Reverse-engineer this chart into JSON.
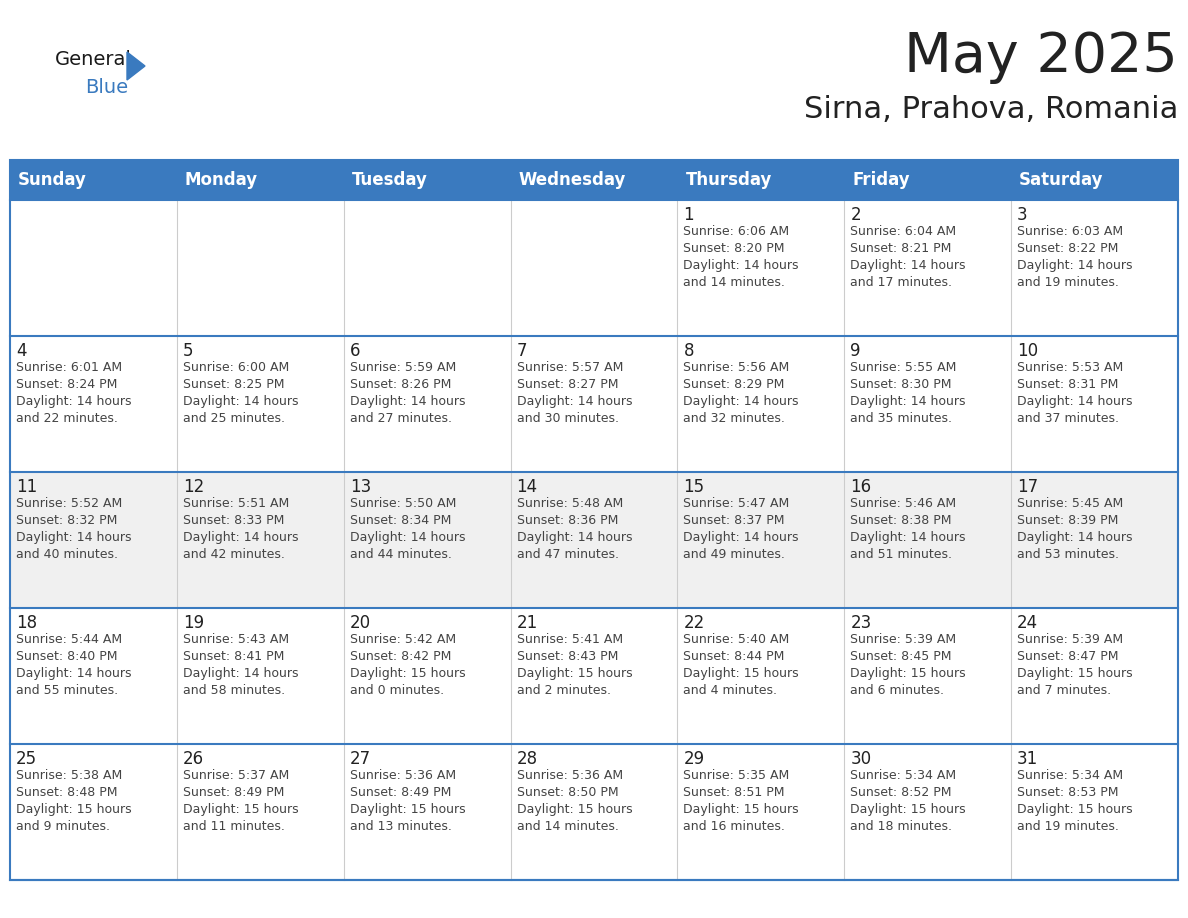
{
  "title": "May 2025",
  "subtitle": "Sirna, Prahova, Romania",
  "header_color": "#3a7abf",
  "header_text_color": "#ffffff",
  "cell_bg_white": "#ffffff",
  "cell_bg_gray": "#f0f0f0",
  "text_color": "#444444",
  "day_number_color": "#222222",
  "border_color": "#3a7abf",
  "grid_color": "#cccccc",
  "days_of_week": [
    "Sunday",
    "Monday",
    "Tuesday",
    "Wednesday",
    "Thursday",
    "Friday",
    "Saturday"
  ],
  "calendar": [
    [
      {
        "day": "",
        "info": ""
      },
      {
        "day": "",
        "info": ""
      },
      {
        "day": "",
        "info": ""
      },
      {
        "day": "",
        "info": ""
      },
      {
        "day": "1",
        "info": "Sunrise: 6:06 AM\nSunset: 8:20 PM\nDaylight: 14 hours\nand 14 minutes."
      },
      {
        "day": "2",
        "info": "Sunrise: 6:04 AM\nSunset: 8:21 PM\nDaylight: 14 hours\nand 17 minutes."
      },
      {
        "day": "3",
        "info": "Sunrise: 6:03 AM\nSunset: 8:22 PM\nDaylight: 14 hours\nand 19 minutes."
      }
    ],
    [
      {
        "day": "4",
        "info": "Sunrise: 6:01 AM\nSunset: 8:24 PM\nDaylight: 14 hours\nand 22 minutes."
      },
      {
        "day": "5",
        "info": "Sunrise: 6:00 AM\nSunset: 8:25 PM\nDaylight: 14 hours\nand 25 minutes."
      },
      {
        "day": "6",
        "info": "Sunrise: 5:59 AM\nSunset: 8:26 PM\nDaylight: 14 hours\nand 27 minutes."
      },
      {
        "day": "7",
        "info": "Sunrise: 5:57 AM\nSunset: 8:27 PM\nDaylight: 14 hours\nand 30 minutes."
      },
      {
        "day": "8",
        "info": "Sunrise: 5:56 AM\nSunset: 8:29 PM\nDaylight: 14 hours\nand 32 minutes."
      },
      {
        "day": "9",
        "info": "Sunrise: 5:55 AM\nSunset: 8:30 PM\nDaylight: 14 hours\nand 35 minutes."
      },
      {
        "day": "10",
        "info": "Sunrise: 5:53 AM\nSunset: 8:31 PM\nDaylight: 14 hours\nand 37 minutes."
      }
    ],
    [
      {
        "day": "11",
        "info": "Sunrise: 5:52 AM\nSunset: 8:32 PM\nDaylight: 14 hours\nand 40 minutes."
      },
      {
        "day": "12",
        "info": "Sunrise: 5:51 AM\nSunset: 8:33 PM\nDaylight: 14 hours\nand 42 minutes."
      },
      {
        "day": "13",
        "info": "Sunrise: 5:50 AM\nSunset: 8:34 PM\nDaylight: 14 hours\nand 44 minutes."
      },
      {
        "day": "14",
        "info": "Sunrise: 5:48 AM\nSunset: 8:36 PM\nDaylight: 14 hours\nand 47 minutes."
      },
      {
        "day": "15",
        "info": "Sunrise: 5:47 AM\nSunset: 8:37 PM\nDaylight: 14 hours\nand 49 minutes."
      },
      {
        "day": "16",
        "info": "Sunrise: 5:46 AM\nSunset: 8:38 PM\nDaylight: 14 hours\nand 51 minutes."
      },
      {
        "day": "17",
        "info": "Sunrise: 5:45 AM\nSunset: 8:39 PM\nDaylight: 14 hours\nand 53 minutes."
      }
    ],
    [
      {
        "day": "18",
        "info": "Sunrise: 5:44 AM\nSunset: 8:40 PM\nDaylight: 14 hours\nand 55 minutes."
      },
      {
        "day": "19",
        "info": "Sunrise: 5:43 AM\nSunset: 8:41 PM\nDaylight: 14 hours\nand 58 minutes."
      },
      {
        "day": "20",
        "info": "Sunrise: 5:42 AM\nSunset: 8:42 PM\nDaylight: 15 hours\nand 0 minutes."
      },
      {
        "day": "21",
        "info": "Sunrise: 5:41 AM\nSunset: 8:43 PM\nDaylight: 15 hours\nand 2 minutes."
      },
      {
        "day": "22",
        "info": "Sunrise: 5:40 AM\nSunset: 8:44 PM\nDaylight: 15 hours\nand 4 minutes."
      },
      {
        "day": "23",
        "info": "Sunrise: 5:39 AM\nSunset: 8:45 PM\nDaylight: 15 hours\nand 6 minutes."
      },
      {
        "day": "24",
        "info": "Sunrise: 5:39 AM\nSunset: 8:47 PM\nDaylight: 15 hours\nand 7 minutes."
      }
    ],
    [
      {
        "day": "25",
        "info": "Sunrise: 5:38 AM\nSunset: 8:48 PM\nDaylight: 15 hours\nand 9 minutes."
      },
      {
        "day": "26",
        "info": "Sunrise: 5:37 AM\nSunset: 8:49 PM\nDaylight: 15 hours\nand 11 minutes."
      },
      {
        "day": "27",
        "info": "Sunrise: 5:36 AM\nSunset: 8:49 PM\nDaylight: 15 hours\nand 13 minutes."
      },
      {
        "day": "28",
        "info": "Sunrise: 5:36 AM\nSunset: 8:50 PM\nDaylight: 15 hours\nand 14 minutes."
      },
      {
        "day": "29",
        "info": "Sunrise: 5:35 AM\nSunset: 8:51 PM\nDaylight: 15 hours\nand 16 minutes."
      },
      {
        "day": "30",
        "info": "Sunrise: 5:34 AM\nSunset: 8:52 PM\nDaylight: 15 hours\nand 18 minutes."
      },
      {
        "day": "31",
        "info": "Sunrise: 5:34 AM\nSunset: 8:53 PM\nDaylight: 15 hours\nand 19 minutes."
      }
    ]
  ],
  "logo_text1": "General",
  "logo_text2": "Blue",
  "logo_color1": "#1a1a1a",
  "logo_color2": "#3a7abf",
  "logo_triangle_color": "#3a7abf",
  "title_fontsize": 40,
  "subtitle_fontsize": 22,
  "header_fontsize": 12,
  "day_num_fontsize": 12,
  "info_fontsize": 9
}
